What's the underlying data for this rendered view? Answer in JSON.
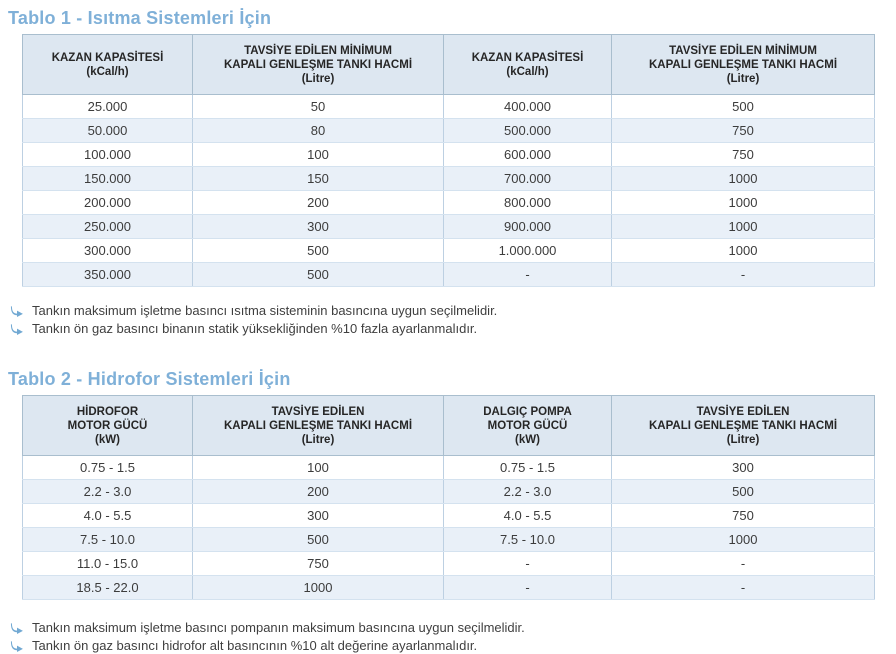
{
  "colors": {
    "accent_blue": "#7fb0d8",
    "header_bg": "#dde7f1",
    "row_alt_bg": "#e9f0f8",
    "border_blue": "#bdd0e2",
    "arrow_blue": "#72a9d3"
  },
  "table1": {
    "title": "Tablo 1 - Isıtma Sistemleri İçin",
    "headers": [
      [
        "KAZAN KAPASİTESİ",
        "(kCal/h)"
      ],
      [
        "TAVSİYE EDİLEN MİNİMUM",
        "KAPALI GENLEŞME TANKI HACMİ",
        "(Litre)"
      ],
      [
        "KAZAN KAPASİTESİ",
        "(kCal/h)"
      ],
      [
        "TAVSİYE EDİLEN MİNİMUM",
        "KAPALI GENLEŞME TANKI HACMİ",
        "(Litre)"
      ]
    ],
    "rows": [
      [
        "25.000",
        "50",
        "400.000",
        "500"
      ],
      [
        "50.000",
        "80",
        "500.000",
        "750"
      ],
      [
        "100.000",
        "100",
        "600.000",
        "750"
      ],
      [
        "150.000",
        "150",
        "700.000",
        "1000"
      ],
      [
        "200.000",
        "200",
        "800.000",
        "1000"
      ],
      [
        "250.000",
        "300",
        "900.000",
        "1000"
      ],
      [
        "300.000",
        "500",
        "1.000.000",
        "1000"
      ],
      [
        "350.000",
        "500",
        "-",
        "-"
      ]
    ],
    "notes": [
      "Tankın maksimum işletme basıncı ısıtma sisteminin basıncına uygun seçilmelidir.",
      "Tankın ön gaz basıncı binanın statik yüksekliğinden %10 fazla ayarlanmalıdır."
    ]
  },
  "table2": {
    "title": "Tablo 2 - Hidrofor Sistemleri İçin",
    "headers": [
      [
        "HİDROFOR",
        "MOTOR GÜCÜ",
        "(kW)"
      ],
      [
        "TAVSİYE EDİLEN",
        "KAPALI GENLEŞME TANKI HACMİ",
        "(Litre)"
      ],
      [
        "DALGIÇ POMPA",
        "MOTOR GÜCÜ",
        "(kW)"
      ],
      [
        "TAVSİYE EDİLEN",
        "KAPALI GENLEŞME TANKI HACMİ",
        "(Litre)"
      ]
    ],
    "rows": [
      [
        "0.75 - 1.5",
        "100",
        "0.75 - 1.5",
        "300"
      ],
      [
        "2.2 - 3.0",
        "200",
        "2.2 - 3.0",
        "500"
      ],
      [
        "4.0 - 5.5",
        "300",
        "4.0 - 5.5",
        "750"
      ],
      [
        "7.5 - 10.0",
        "500",
        "7.5 - 10.0",
        "1000"
      ],
      [
        "11.0 - 15.0",
        "750",
        "-",
        "-"
      ],
      [
        "18.5 - 22.0",
        "1000",
        "-",
        "-"
      ]
    ],
    "notes": [
      "Tankın maksimum işletme basıncı pompanın maksimum basıncına uygun seçilmelidir.",
      "Tankın ön gaz basıncı hidrofor alt basıncının %10 alt değerine ayarlanmalıdır."
    ]
  }
}
